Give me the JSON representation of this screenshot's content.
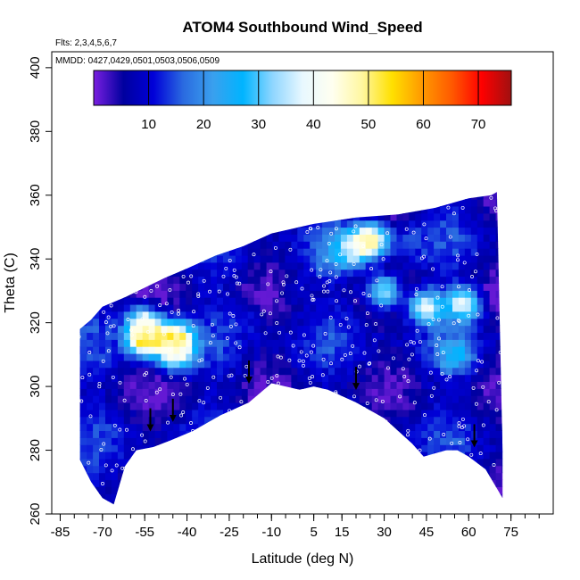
{
  "chart_data": {
    "type": "heatmap",
    "title": "ATOM4 Southbound Wind_Speed",
    "annotations": [
      "Flts: 2,3,4,5,6,7",
      "MMDD: 0427,0429,0501,0503,0506,0509"
    ],
    "xlabel": "Latitude (deg N)",
    "ylabel": "Theta (C)",
    "xlim": [
      -88,
      90
    ],
    "ylim": [
      260,
      405
    ],
    "x_ticks": [
      -85,
      -70,
      -55,
      -40,
      -25,
      -10,
      5,
      15,
      30,
      45,
      60,
      75
    ],
    "y_ticks": [
      260,
      280,
      300,
      320,
      340,
      360,
      380,
      400
    ],
    "colorbar": {
      "range": [
        0,
        76
      ],
      "ticks": [
        10,
        20,
        30,
        40,
        50,
        60,
        70
      ],
      "colors": [
        "#7a1fe0",
        "#00009f",
        "#0000d8",
        "#2a6ae0",
        "#3aa0ee",
        "#00b4ff",
        "#8fd6ff",
        "#e8f8ff",
        "#fffff0",
        "#fff7a0",
        "#ffe000",
        "#ff9a00",
        "#ff5a00",
        "#ff0000",
        "#a01010"
      ]
    },
    "upper_boundary": [
      [
        -78,
        318
      ],
      [
        -74,
        321
      ],
      [
        -70,
        325
      ],
      [
        -62,
        328
      ],
      [
        -55,
        331
      ],
      [
        -48,
        334
      ],
      [
        -40,
        337
      ],
      [
        -30,
        341
      ],
      [
        -20,
        344
      ],
      [
        -10,
        348
      ],
      [
        5,
        351
      ],
      [
        20,
        353
      ],
      [
        35,
        354
      ],
      [
        48,
        356
      ],
      [
        60,
        359
      ],
      [
        68,
        360
      ],
      [
        70,
        361
      ],
      [
        72,
        280
      ],
      [
        72,
        265
      ]
    ],
    "lower_boundary": [
      [
        -78,
        277
      ],
      [
        -74,
        270
      ],
      [
        -70,
        265
      ],
      [
        -66,
        263
      ],
      [
        -62,
        275
      ],
      [
        -58,
        280
      ],
      [
        -52,
        281
      ],
      [
        -46,
        283
      ],
      [
        -38,
        286
      ],
      [
        -28,
        291
      ],
      [
        -18,
        295
      ],
      [
        -10,
        301
      ],
      [
        0,
        299
      ],
      [
        5,
        300
      ],
      [
        10,
        299
      ],
      [
        20,
        295
      ],
      [
        30,
        290
      ],
      [
        40,
        282
      ],
      [
        44,
        278
      ],
      [
        48,
        279
      ],
      [
        52,
        280
      ],
      [
        56,
        280
      ],
      [
        60,
        278
      ],
      [
        66,
        274
      ],
      [
        72,
        265
      ]
    ],
    "wind_speed_features": [
      {
        "lat": -55,
        "theta": 320,
        "value": 38
      },
      {
        "lat": -55,
        "theta": 315,
        "value": 55
      },
      {
        "lat": -44,
        "theta": 315,
        "value": 55
      },
      {
        "lat": -44,
        "theta": 310,
        "value": 36
      },
      {
        "lat": 25,
        "theta": 346,
        "value": 50
      },
      {
        "lat": 18,
        "theta": 343,
        "value": 38
      },
      {
        "lat": 30,
        "theta": 330,
        "value": 32
      },
      {
        "lat": 45,
        "theta": 325,
        "value": 38
      },
      {
        "lat": 58,
        "theta": 326,
        "value": 40
      },
      {
        "lat": 55,
        "theta": 310,
        "value": 28
      },
      {
        "lat": -20,
        "theta": 320,
        "value": 12
      },
      {
        "lat": 0,
        "theta": 330,
        "value": 8
      },
      {
        "lat": -30,
        "theta": 330,
        "value": 10
      },
      {
        "lat": 10,
        "theta": 340,
        "value": 18
      },
      {
        "lat": 40,
        "theta": 345,
        "value": 14
      }
    ],
    "profile_arrows": [
      [
        -53,
        287
      ],
      [
        -45,
        290
      ],
      [
        -18,
        302
      ],
      [
        20,
        300
      ],
      [
        62,
        282
      ]
    ]
  }
}
